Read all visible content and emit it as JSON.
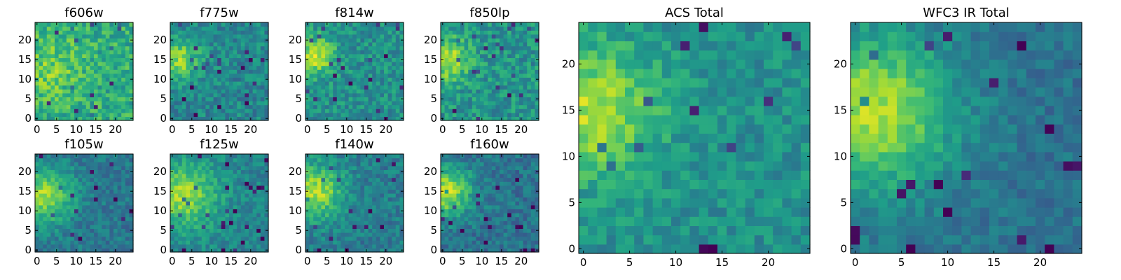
{
  "chart_data": [
    {
      "type": "heatmap",
      "title": "f606w",
      "colormap": "viridis",
      "grid_size": 25,
      "xlim": [
        0,
        24
      ],
      "ylim": [
        0,
        24
      ],
      "xticks": [
        0,
        5,
        10,
        15,
        20
      ],
      "yticks": [
        0,
        5,
        10,
        15,
        20
      ],
      "origin": "lower",
      "blob": {
        "x": 3,
        "y": 13,
        "sigma": 6,
        "amp": 0.15
      },
      "base": 0.62,
      "noise": 0.32,
      "seed": 11
    },
    {
      "type": "heatmap",
      "title": "f775w",
      "colormap": "viridis",
      "grid_size": 25,
      "xlim": [
        0,
        24
      ],
      "ylim": [
        0,
        24
      ],
      "xticks": [
        0,
        5,
        10,
        15,
        20
      ],
      "yticks": [
        0,
        5,
        10,
        15,
        20
      ],
      "origin": "lower",
      "blob": {
        "x": 2,
        "y": 15,
        "sigma": 4,
        "amp": 0.35
      },
      "base": 0.46,
      "noise": 0.28,
      "seed": 23
    },
    {
      "type": "heatmap",
      "title": "f814w",
      "colormap": "viridis",
      "grid_size": 25,
      "xlim": [
        0,
        24
      ],
      "ylim": [
        0,
        24
      ],
      "xticks": [
        0,
        5,
        10,
        15,
        20
      ],
      "yticks": [
        0,
        5,
        10,
        15,
        20
      ],
      "origin": "lower",
      "blob": {
        "x": 2,
        "y": 16,
        "sigma": 3.5,
        "amp": 0.4
      },
      "base": 0.5,
      "noise": 0.28,
      "seed": 37
    },
    {
      "type": "heatmap",
      "title": "f850lp",
      "colormap": "viridis",
      "grid_size": 25,
      "xlim": [
        0,
        24
      ],
      "ylim": [
        0,
        24
      ],
      "xticks": [
        0,
        5,
        10,
        15,
        20
      ],
      "yticks": [
        0,
        5,
        10,
        15,
        20
      ],
      "origin": "lower",
      "blob": {
        "x": 1,
        "y": 15,
        "sigma": 4,
        "amp": 0.35
      },
      "base": 0.52,
      "noise": 0.3,
      "seed": 41
    },
    {
      "type": "heatmap",
      "title": "f105w",
      "colormap": "viridis",
      "grid_size": 25,
      "xlim": [
        0,
        24
      ],
      "ylim": [
        0,
        24
      ],
      "xticks": [
        0,
        5,
        10,
        15,
        20
      ],
      "yticks": [
        0,
        5,
        10,
        15,
        20
      ],
      "origin": "lower",
      "blob": {
        "x": 2,
        "y": 14,
        "sigma": 5,
        "amp": 0.45
      },
      "base": 0.4,
      "noise": 0.22,
      "seed": 53
    },
    {
      "type": "heatmap",
      "title": "f125w",
      "colormap": "viridis",
      "grid_size": 25,
      "xlim": [
        0,
        24
      ],
      "ylim": [
        0,
        24
      ],
      "xticks": [
        0,
        5,
        10,
        15,
        20
      ],
      "yticks": [
        0,
        5,
        10,
        15,
        20
      ],
      "origin": "lower",
      "blob": {
        "x": 3,
        "y": 14,
        "sigma": 6,
        "amp": 0.4
      },
      "base": 0.45,
      "noise": 0.22,
      "seed": 67
    },
    {
      "type": "heatmap",
      "title": "f140w",
      "colormap": "viridis",
      "grid_size": 25,
      "xlim": [
        0,
        24
      ],
      "ylim": [
        0,
        24
      ],
      "xticks": [
        0,
        5,
        10,
        15,
        20
      ],
      "yticks": [
        0,
        5,
        10,
        15,
        20
      ],
      "origin": "lower",
      "blob": {
        "x": 2,
        "y": 15,
        "sigma": 5,
        "amp": 0.45
      },
      "base": 0.42,
      "noise": 0.24,
      "seed": 79
    },
    {
      "type": "heatmap",
      "title": "f160w",
      "colormap": "viridis",
      "grid_size": 25,
      "xlim": [
        0,
        24
      ],
      "ylim": [
        0,
        24
      ],
      "xticks": [
        0,
        5,
        10,
        15,
        20
      ],
      "yticks": [
        0,
        5,
        10,
        15,
        20
      ],
      "origin": "lower",
      "blob": {
        "x": 1,
        "y": 15,
        "sigma": 4.5,
        "amp": 0.5
      },
      "base": 0.38,
      "noise": 0.24,
      "seed": 83
    },
    {
      "type": "heatmap",
      "title": "ACS Total",
      "colormap": "viridis",
      "grid_size": 25,
      "xlim": [
        0,
        24
      ],
      "ylim": [
        0,
        24
      ],
      "xticks": [
        0,
        5,
        10,
        15,
        20
      ],
      "yticks": [
        0,
        5,
        10,
        15,
        20
      ],
      "origin": "lower",
      "blob": {
        "x": 1,
        "y": 15,
        "sigma": 5,
        "amp": 0.38
      },
      "base": 0.5,
      "noise": 0.22,
      "seed": 97
    },
    {
      "type": "heatmap",
      "title": "WFC3 IR Total",
      "colormap": "viridis",
      "grid_size": 25,
      "xlim": [
        0,
        24
      ],
      "ylim": [
        0,
        24
      ],
      "xticks": [
        0,
        5,
        10,
        15,
        20
      ],
      "yticks": [
        0,
        5,
        10,
        15,
        20
      ],
      "origin": "lower",
      "blob": {
        "x": 2,
        "y": 15,
        "sigma": 6,
        "amp": 0.5
      },
      "base": 0.38,
      "noise": 0.18,
      "seed": 101
    }
  ]
}
